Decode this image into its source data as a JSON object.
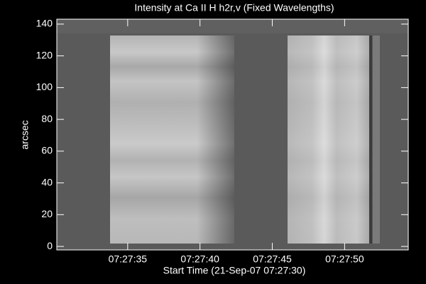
{
  "chart_data": {
    "type": "image",
    "title": "Intensity at Ca II H h2r,v (Fixed Wavelengths)",
    "xlabel": "Start Time (21-Sep-07 07:27:30)",
    "ylabel": "arcsec",
    "xlim": [
      0.1,
      24.4
    ],
    "xticks": [
      {
        "value": 5,
        "label": "07:27:35"
      },
      {
        "value": 10,
        "label": "07:27:40"
      },
      {
        "value": 15,
        "label": "07:27:45"
      },
      {
        "value": 20,
        "label": "07:27:50"
      }
    ],
    "ylim": [
      -2.2,
      143.1
    ],
    "yticks": [
      0,
      20,
      40,
      60,
      80,
      100,
      120,
      140
    ]
  }
}
